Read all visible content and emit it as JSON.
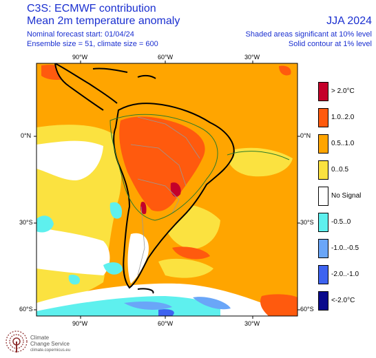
{
  "header": {
    "title": "C3S: ECMWF contribution",
    "subtitle": "Mean 2m temperature anomaly",
    "forecast_start": "Nominal forecast start: 01/04/24",
    "ensemble": "Ensemble size = 51, climate size = 600",
    "season": "JJA 2024",
    "sig_shaded": "Shaded areas significant at 10% level",
    "sig_contour": "Solid contour at 1% level"
  },
  "map": {
    "lon_ticks": [
      "90°W",
      "60°W",
      "30°W"
    ],
    "lat_ticks": [
      "0°N",
      "30°S",
      "60°S"
    ]
  },
  "legend": [
    {
      "label": "> 2.0°C",
      "color": "#c4002a"
    },
    {
      "label": "1.0..2.0",
      "color": "#ff5a0e"
    },
    {
      "label": "0.5..1.0",
      "color": "#ffa500"
    },
    {
      "label": "0..0.5",
      "color": "#fbe240"
    },
    {
      "label": "No Signal",
      "color": "#ffffff"
    },
    {
      "label": "-0.5..0",
      "color": "#5ef0ee"
    },
    {
      "label": "-1.0..-0.5",
      "color": "#6aa6f8"
    },
    {
      "label": "-2.0..-1.0",
      "color": "#3d63f0"
    },
    {
      "label": "<-2.0°C",
      "color": "#0a0a8c"
    }
  ],
  "logo": {
    "name_line1": "Climate",
    "name_line2": "Change Service",
    "url": "climate.copernicus.eu"
  }
}
